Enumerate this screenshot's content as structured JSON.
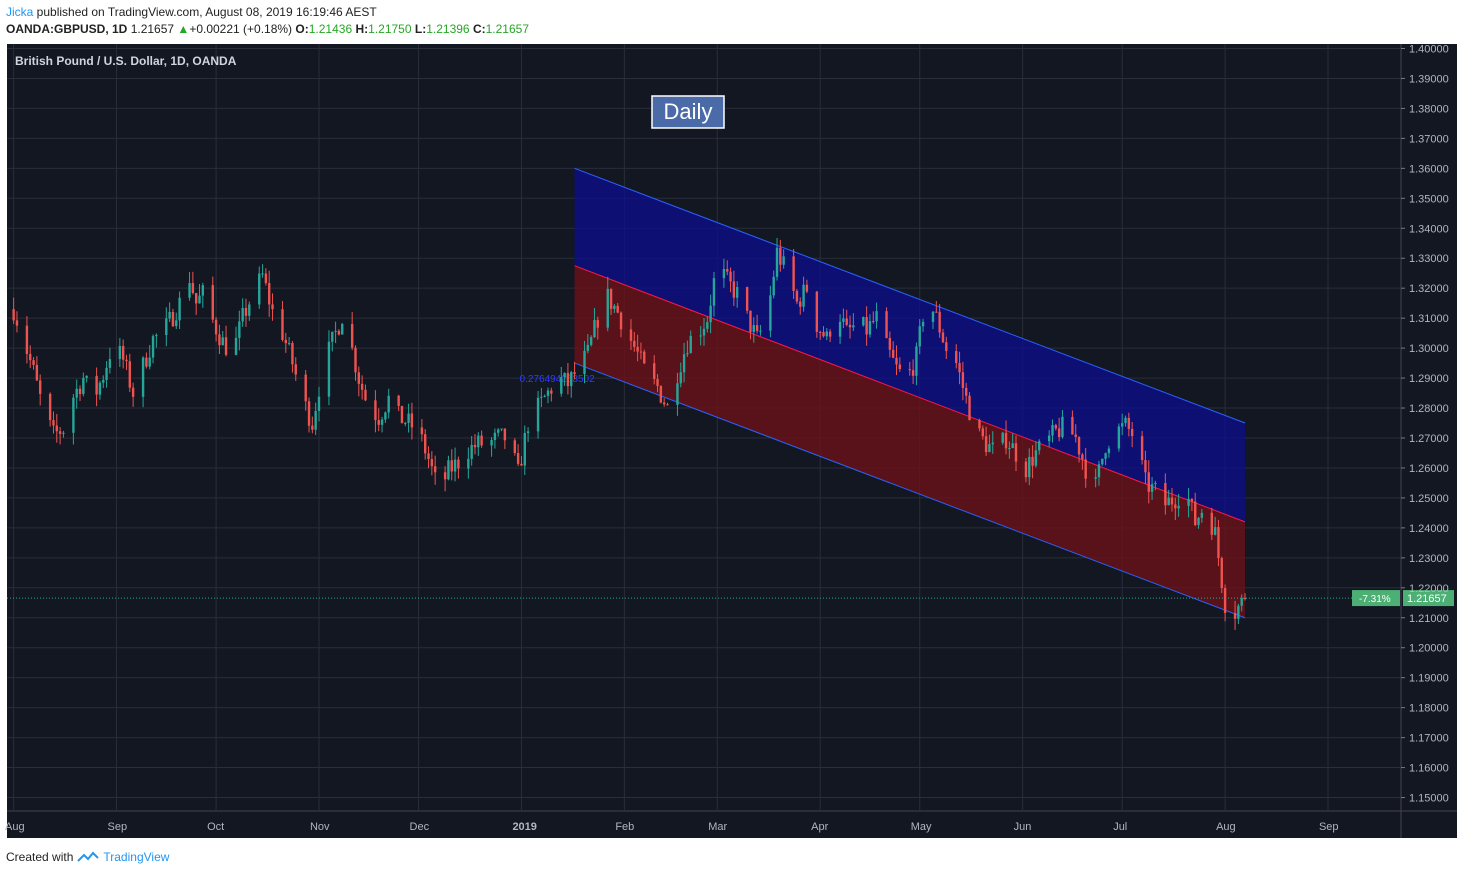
{
  "header": {
    "author": "Jicka",
    "published_text": " published on TradingView.com, August 08, 2019 16:19:46 AEST",
    "symbol": "OANDA:GBPUSD, 1D",
    "last": "1.21657",
    "change": "+0.00221 (+0.18%)",
    "o_label": "O:",
    "o": "1.21436",
    "h_label": "H:",
    "h": "1.21750",
    "l_label": "L:",
    "l": "1.21396",
    "c_label": "C:",
    "c": "1.21657"
  },
  "footer": {
    "created_with": "Created with",
    "brand": "TradingView"
  },
  "colors": {
    "background": "#131722",
    "grid": "#2a2e39",
    "up": "#26a69a",
    "down": "#ef5350",
    "channel_upper_fill": "#0d0d8f",
    "channel_lower_fill": "#6b1219",
    "label_badge": "#4a6aa8",
    "price_badge": "#4caf73"
  },
  "chart_data": {
    "type": "candlestick",
    "title": "British Pound / U.S. Dollar, 1D, OANDA",
    "annotation": "Daily",
    "x_ticks": [
      "Aug",
      "Sep",
      "Oct",
      "Nov",
      "Dec",
      "2019",
      "Feb",
      "Mar",
      "Apr",
      "May",
      "Jun",
      "Jul",
      "Aug",
      "Sep"
    ],
    "x_tick_days": [
      0,
      31,
      61,
      92,
      122,
      153,
      184,
      212,
      243,
      273,
      304,
      334,
      365,
      396
    ],
    "x_range_days": [
      -2,
      418
    ],
    "y_ticks": [
      "1.40000",
      "1.39000",
      "1.38000",
      "1.37000",
      "1.36000",
      "1.35000",
      "1.34000",
      "1.33000",
      "1.32000",
      "1.31000",
      "1.30000",
      "1.29000",
      "1.28000",
      "1.27000",
      "1.26000",
      "1.25000",
      "1.24000",
      "1.23000",
      "1.22000",
      "1.21000",
      "1.20000",
      "1.19000",
      "1.18000",
      "1.17000",
      "1.16000",
      "1.15000"
    ],
    "ylim": [
      1.1455,
      1.4015
    ],
    "current_price": {
      "value": 1.21657,
      "label": "1.21657",
      "change_pct": "-7.31%"
    },
    "regression_channel": {
      "start_day": 169,
      "end_day": 371,
      "upper_start": 1.36,
      "upper_end": 1.275,
      "mid_start": 1.3275,
      "mid_end": 1.242,
      "lower_start": 1.295,
      "lower_end": 1.21,
      "coeff_label": "0.276494253502"
    },
    "closes": [
      {
        "d": 0,
        "c": 1.313
      },
      {
        "d": 3,
        "c": 1.303
      },
      {
        "d": 6,
        "c": 1.292
      },
      {
        "d": 9,
        "c": 1.279
      },
      {
        "d": 12,
        "c": 1.271
      },
      {
        "d": 15,
        "c": 1.273
      },
      {
        "d": 18,
        "c": 1.284
      },
      {
        "d": 21,
        "c": 1.29
      },
      {
        "d": 24,
        "c": 1.283
      },
      {
        "d": 27,
        "c": 1.291
      },
      {
        "d": 30,
        "c": 1.302
      },
      {
        "d": 33,
        "c": 1.296
      },
      {
        "d": 36,
        "c": 1.285
      },
      {
        "d": 39,
        "c": 1.294
      },
      {
        "d": 42,
        "c": 1.303
      },
      {
        "d": 45,
        "c": 1.305
      },
      {
        "d": 48,
        "c": 1.311
      },
      {
        "d": 51,
        "c": 1.317
      },
      {
        "d": 52,
        "c": 1.328
      },
      {
        "d": 55,
        "c": 1.315
      },
      {
        "d": 57,
        "c": 1.318
      },
      {
        "d": 60,
        "c": 1.309
      },
      {
        "d": 63,
        "c": 1.302
      },
      {
        "d": 66,
        "c": 1.298
      },
      {
        "d": 69,
        "c": 1.31
      },
      {
        "d": 72,
        "c": 1.318
      },
      {
        "d": 75,
        "c": 1.324
      },
      {
        "d": 78,
        "c": 1.312
      },
      {
        "d": 81,
        "c": 1.305
      },
      {
        "d": 84,
        "c": 1.295
      },
      {
        "d": 87,
        "c": 1.283
      },
      {
        "d": 90,
        "c": 1.275
      },
      {
        "d": 93,
        "c": 1.293
      },
      {
        "d": 96,
        "c": 1.302
      },
      {
        "d": 99,
        "c": 1.311
      },
      {
        "d": 101,
        "c": 1.304
      },
      {
        "d": 104,
        "c": 1.29
      },
      {
        "d": 107,
        "c": 1.28
      },
      {
        "d": 110,
        "c": 1.277
      },
      {
        "d": 113,
        "c": 1.283
      },
      {
        "d": 116,
        "c": 1.277
      },
      {
        "d": 119,
        "c": 1.275
      },
      {
        "d": 122,
        "c": 1.272
      },
      {
        "d": 125,
        "c": 1.263
      },
      {
        "d": 128,
        "c": 1.252
      },
      {
        "d": 131,
        "c": 1.259
      },
      {
        "d": 134,
        "c": 1.262
      },
      {
        "d": 137,
        "c": 1.266
      },
      {
        "d": 140,
        "c": 1.268
      },
      {
        "d": 143,
        "c": 1.268
      },
      {
        "d": 146,
        "c": 1.27
      },
      {
        "d": 149,
        "c": 1.27
      },
      {
        "d": 152,
        "c": 1.258
      },
      {
        "d": 155,
        "c": 1.275
      },
      {
        "d": 158,
        "c": 1.28
      },
      {
        "d": 161,
        "c": 1.285
      },
      {
        "d": 164,
        "c": 1.29
      },
      {
        "d": 167,
        "c": 1.288
      },
      {
        "d": 170,
        "c": 1.293
      },
      {
        "d": 173,
        "c": 1.298
      },
      {
        "d": 176,
        "c": 1.31
      },
      {
        "d": 179,
        "c": 1.317
      },
      {
        "d": 182,
        "c": 1.312
      },
      {
        "d": 185,
        "c": 1.305
      },
      {
        "d": 188,
        "c": 1.298
      },
      {
        "d": 191,
        "c": 1.29
      },
      {
        "d": 194,
        "c": 1.287
      },
      {
        "d": 197,
        "c": 1.28
      },
      {
        "d": 200,
        "c": 1.292
      },
      {
        "d": 203,
        "c": 1.302
      },
      {
        "d": 206,
        "c": 1.305
      },
      {
        "d": 209,
        "c": 1.31
      },
      {
        "d": 212,
        "c": 1.328
      },
      {
        "d": 215,
        "c": 1.322
      },
      {
        "d": 218,
        "c": 1.318
      },
      {
        "d": 221,
        "c": 1.31
      },
      {
        "d": 224,
        "c": 1.303
      },
      {
        "d": 227,
        "c": 1.31
      },
      {
        "d": 230,
        "c": 1.332
      },
      {
        "d": 233,
        "c": 1.325
      },
      {
        "d": 236,
        "c": 1.315
      },
      {
        "d": 239,
        "c": 1.32
      },
      {
        "d": 242,
        "c": 1.308
      },
      {
        "d": 245,
        "c": 1.303
      },
      {
        "d": 248,
        "c": 1.314
      },
      {
        "d": 251,
        "c": 1.305
      },
      {
        "d": 254,
        "c": 1.308
      },
      {
        "d": 257,
        "c": 1.306
      },
      {
        "d": 260,
        "c": 1.31
      },
      {
        "d": 263,
        "c": 1.3
      },
      {
        "d": 266,
        "c": 1.293
      },
      {
        "d": 269,
        "c": 1.289
      },
      {
        "d": 272,
        "c": 1.297
      },
      {
        "d": 275,
        "c": 1.318
      },
      {
        "d": 278,
        "c": 1.31
      },
      {
        "d": 281,
        "c": 1.3
      },
      {
        "d": 284,
        "c": 1.295
      },
      {
        "d": 287,
        "c": 1.283
      },
      {
        "d": 290,
        "c": 1.272
      },
      {
        "d": 293,
        "c": 1.268
      },
      {
        "d": 296,
        "c": 1.265
      },
      {
        "d": 299,
        "c": 1.27
      },
      {
        "d": 302,
        "c": 1.265
      },
      {
        "d": 305,
        "c": 1.26
      },
      {
        "d": 308,
        "c": 1.265
      },
      {
        "d": 311,
        "c": 1.268
      },
      {
        "d": 314,
        "c": 1.272
      },
      {
        "d": 317,
        "c": 1.274
      },
      {
        "d": 320,
        "c": 1.27
      },
      {
        "d": 323,
        "c": 1.26
      },
      {
        "d": 326,
        "c": 1.254
      },
      {
        "d": 329,
        "c": 1.268
      },
      {
        "d": 332,
        "c": 1.272
      },
      {
        "d": 335,
        "c": 1.274
      },
      {
        "d": 338,
        "c": 1.27
      },
      {
        "d": 341,
        "c": 1.255
      },
      {
        "d": 344,
        "c": 1.252
      },
      {
        "d": 347,
        "c": 1.248
      },
      {
        "d": 350,
        "c": 1.25
      },
      {
        "d": 353,
        "c": 1.253
      },
      {
        "d": 356,
        "c": 1.242
      },
      {
        "d": 359,
        "c": 1.248
      },
      {
        "d": 362,
        "c": 1.238
      },
      {
        "d": 365,
        "c": 1.215
      },
      {
        "d": 368,
        "c": 1.212
      },
      {
        "d": 371,
        "c": 1.2166
      }
    ]
  }
}
